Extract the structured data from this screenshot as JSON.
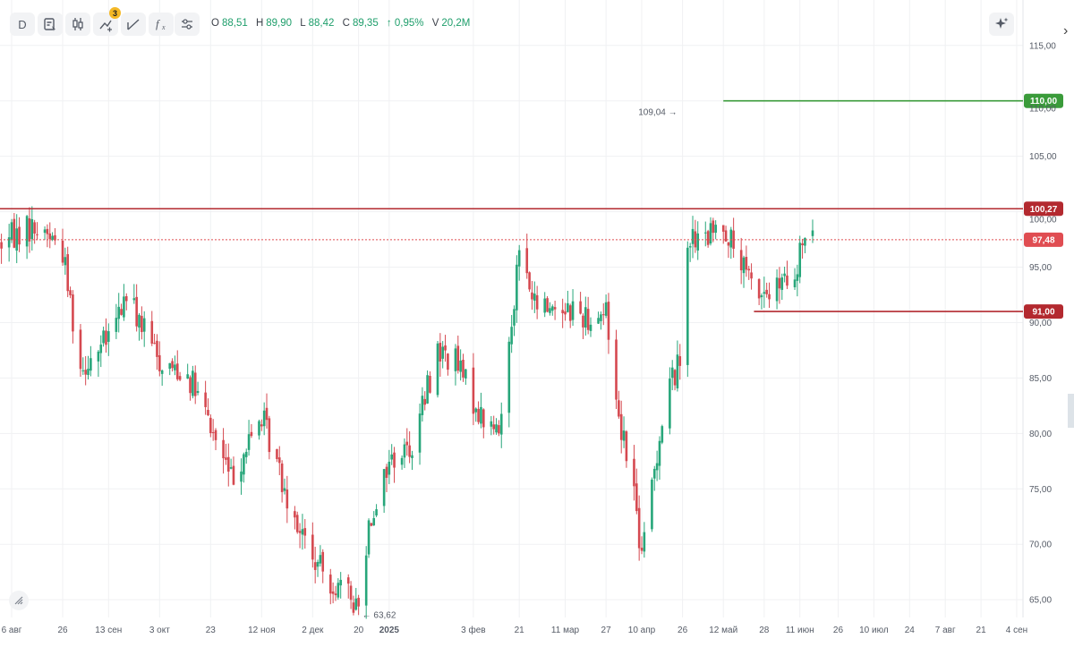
{
  "toolbar": {
    "interval_label": "D",
    "indicator_count": "3",
    "ohlc": {
      "o_key": "O",
      "o_val": "88,51",
      "h_key": "H",
      "h_val": "89,90",
      "l_key": "L",
      "l_val": "88,42",
      "c_key": "C",
      "c_val": "89,35",
      "change": "↑ 0,95%",
      "v_key": "V",
      "v_val": "20,2M"
    },
    "icons": [
      "chart-type-icon",
      "candles-icon",
      "indicators-icon",
      "draw-icon",
      "formula-icon",
      "settings-icon",
      "sparkle-icon"
    ]
  },
  "colors": {
    "up": "#27a67a",
    "down": "#d54950",
    "level_red": "#b3292f",
    "level_green": "#3a9b3a",
    "price_badge": "#e04d52",
    "grid": "#f0f1f3"
  },
  "chart_data": {
    "type": "candlestick",
    "interval": "D",
    "y_ticks": [
      "115,00",
      "110,00",
      "105,00",
      "100,00",
      "95,00",
      "90,00",
      "85,00",
      "80,00",
      "75,00",
      "70,00",
      "65,00"
    ],
    "y_tick_values": [
      115,
      110,
      105,
      100,
      95,
      90,
      85,
      80,
      75,
      70,
      65
    ],
    "ylim": [
      63.4,
      119.1
    ],
    "x_ticks": [
      "6 авг",
      "26",
      "13 сен",
      "3 окт",
      "23",
      "12 ноя",
      "2 дек",
      "20",
      "2025",
      "3 фев",
      "21",
      "11 мар",
      "27",
      "10 апр",
      "26",
      "12 май",
      "28",
      "11 июн",
      "26",
      "10 июл",
      "24",
      "7 авг",
      "21",
      "4 сен"
    ],
    "x_tick_dates": [
      "2024-08-06",
      "2024-08-26",
      "2024-09-13",
      "2024-10-03",
      "2024-10-23",
      "2024-11-12",
      "2024-12-02",
      "2024-12-20",
      "2025-01-01",
      "2025-02-03",
      "2025-02-21",
      "2025-03-11",
      "2025-03-27",
      "2025-04-10",
      "2025-04-26",
      "2025-05-12",
      "2025-05-28",
      "2025-06-11",
      "2025-06-26",
      "2025-07-10",
      "2025-07-24",
      "2025-08-07",
      "2025-08-21",
      "2025-09-04"
    ],
    "levels": [
      {
        "value": 110.0,
        "label": "110,00",
        "color": "#3a9b3a",
        "from_date": "2025-05-12"
      },
      {
        "value": 100.27,
        "label": "100,27",
        "color": "#b3292f",
        "from_date": "2024-08-01"
      },
      {
        "value": 91.0,
        "label": "91,00",
        "color": "#b3292f",
        "from_date": "2025-05-24"
      }
    ],
    "last_price": {
      "value": 97.48,
      "label": "97,48"
    },
    "annotations": [
      {
        "label": "109,04",
        "date": "2025-04-26",
        "value": 109.04,
        "kind": "high"
      },
      {
        "label": "63,62",
        "date": "2024-12-20",
        "value": 63.62,
        "kind": "low"
      }
    ],
    "path_anchors": [
      [
        "2024-08-02",
        97.2
      ],
      [
        "2024-08-12",
        98.6
      ],
      [
        "2024-08-20",
        98.2
      ],
      [
        "2024-08-26",
        96.5
      ],
      [
        "2024-09-02",
        86.0
      ],
      [
        "2024-09-13",
        88.5
      ],
      [
        "2024-09-20",
        92.5
      ],
      [
        "2024-10-03",
        86.5
      ],
      [
        "2024-10-14",
        85.5
      ],
      [
        "2024-10-23",
        80.5
      ],
      [
        "2024-10-31",
        76.0
      ],
      [
        "2024-11-12",
        81.5
      ],
      [
        "2024-11-22",
        74.5
      ],
      [
        "2024-12-02",
        68.5
      ],
      [
        "2024-12-10",
        66.5
      ],
      [
        "2024-12-20",
        64.5
      ],
      [
        "2024-12-24",
        72.0
      ],
      [
        "2025-01-01",
        77.5
      ],
      [
        "2025-01-10",
        79.0
      ],
      [
        "2025-01-20",
        87.5
      ],
      [
        "2025-01-27",
        86.5
      ],
      [
        "2025-02-06",
        81.5
      ],
      [
        "2025-02-13",
        80.0
      ],
      [
        "2025-02-18",
        90.5
      ],
      [
        "2025-02-21",
        96.5
      ],
      [
        "2025-02-27",
        91.5
      ],
      [
        "2025-03-11",
        91.5
      ],
      [
        "2025-03-20",
        90.5
      ],
      [
        "2025-03-27",
        91.0
      ],
      [
        "2025-04-01",
        81.5
      ],
      [
        "2025-04-06",
        77.0
      ],
      [
        "2025-04-10",
        68.5
      ],
      [
        "2025-04-14",
        75.5
      ],
      [
        "2025-04-20",
        84.0
      ],
      [
        "2025-04-25",
        86.5
      ],
      [
        "2025-04-27",
        98.0
      ],
      [
        "2025-05-03",
        97.0
      ],
      [
        "2025-05-12",
        99.0
      ],
      [
        "2025-05-18",
        95.5
      ],
      [
        "2025-05-24",
        93.0
      ],
      [
        "2025-05-30",
        92.5
      ],
      [
        "2025-06-05",
        93.5
      ],
      [
        "2025-06-09",
        93.0
      ],
      [
        "2025-06-12",
        97.5
      ],
      [
        "2025-06-16",
        97.3
      ]
    ]
  }
}
